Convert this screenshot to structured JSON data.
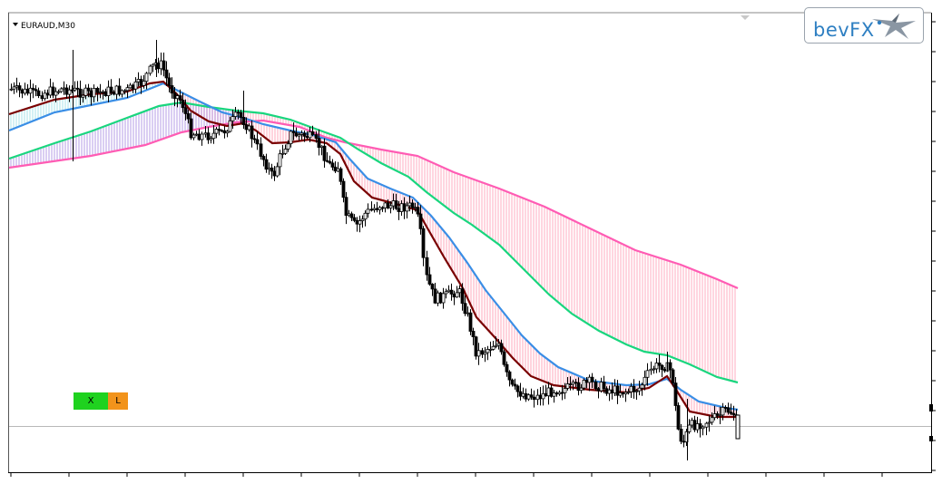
{
  "chart_data": {
    "type": "candlestick",
    "symbol_label": "EURAUD,M30",
    "trend": "downtrend; price falls from upper-left to lower-right, small rebound at the end",
    "series": [
      {
        "role": "price candles",
        "color": "#000000"
      },
      {
        "role": "fast moving average",
        "color": "#7a0000"
      },
      {
        "role": "medium moving average",
        "color": "#3a8ee6"
      },
      {
        "role": "slow moving average",
        "color": "#19d67e"
      },
      {
        "role": "slowest moving average",
        "color": "#ff5cb4"
      }
    ],
    "fill_colors": {
      "between_mas_bearish": "#ff7f9c",
      "between_mas_bullish": "#8a66d8",
      "between_mas_early": "#7fd6e0"
    },
    "price_axis": {
      "position": "right",
      "tick_labels": "not visible"
    },
    "time_axis": {
      "tick_labels": "not visible"
    },
    "grid": false,
    "current_price_line": true
  },
  "panel": {
    "buttons": [
      {
        "label": "X",
        "color": "#1fd21f"
      },
      {
        "label": "L",
        "color": "#f2931b"
      }
    ]
  },
  "logo": {
    "text": "bevFX"
  }
}
